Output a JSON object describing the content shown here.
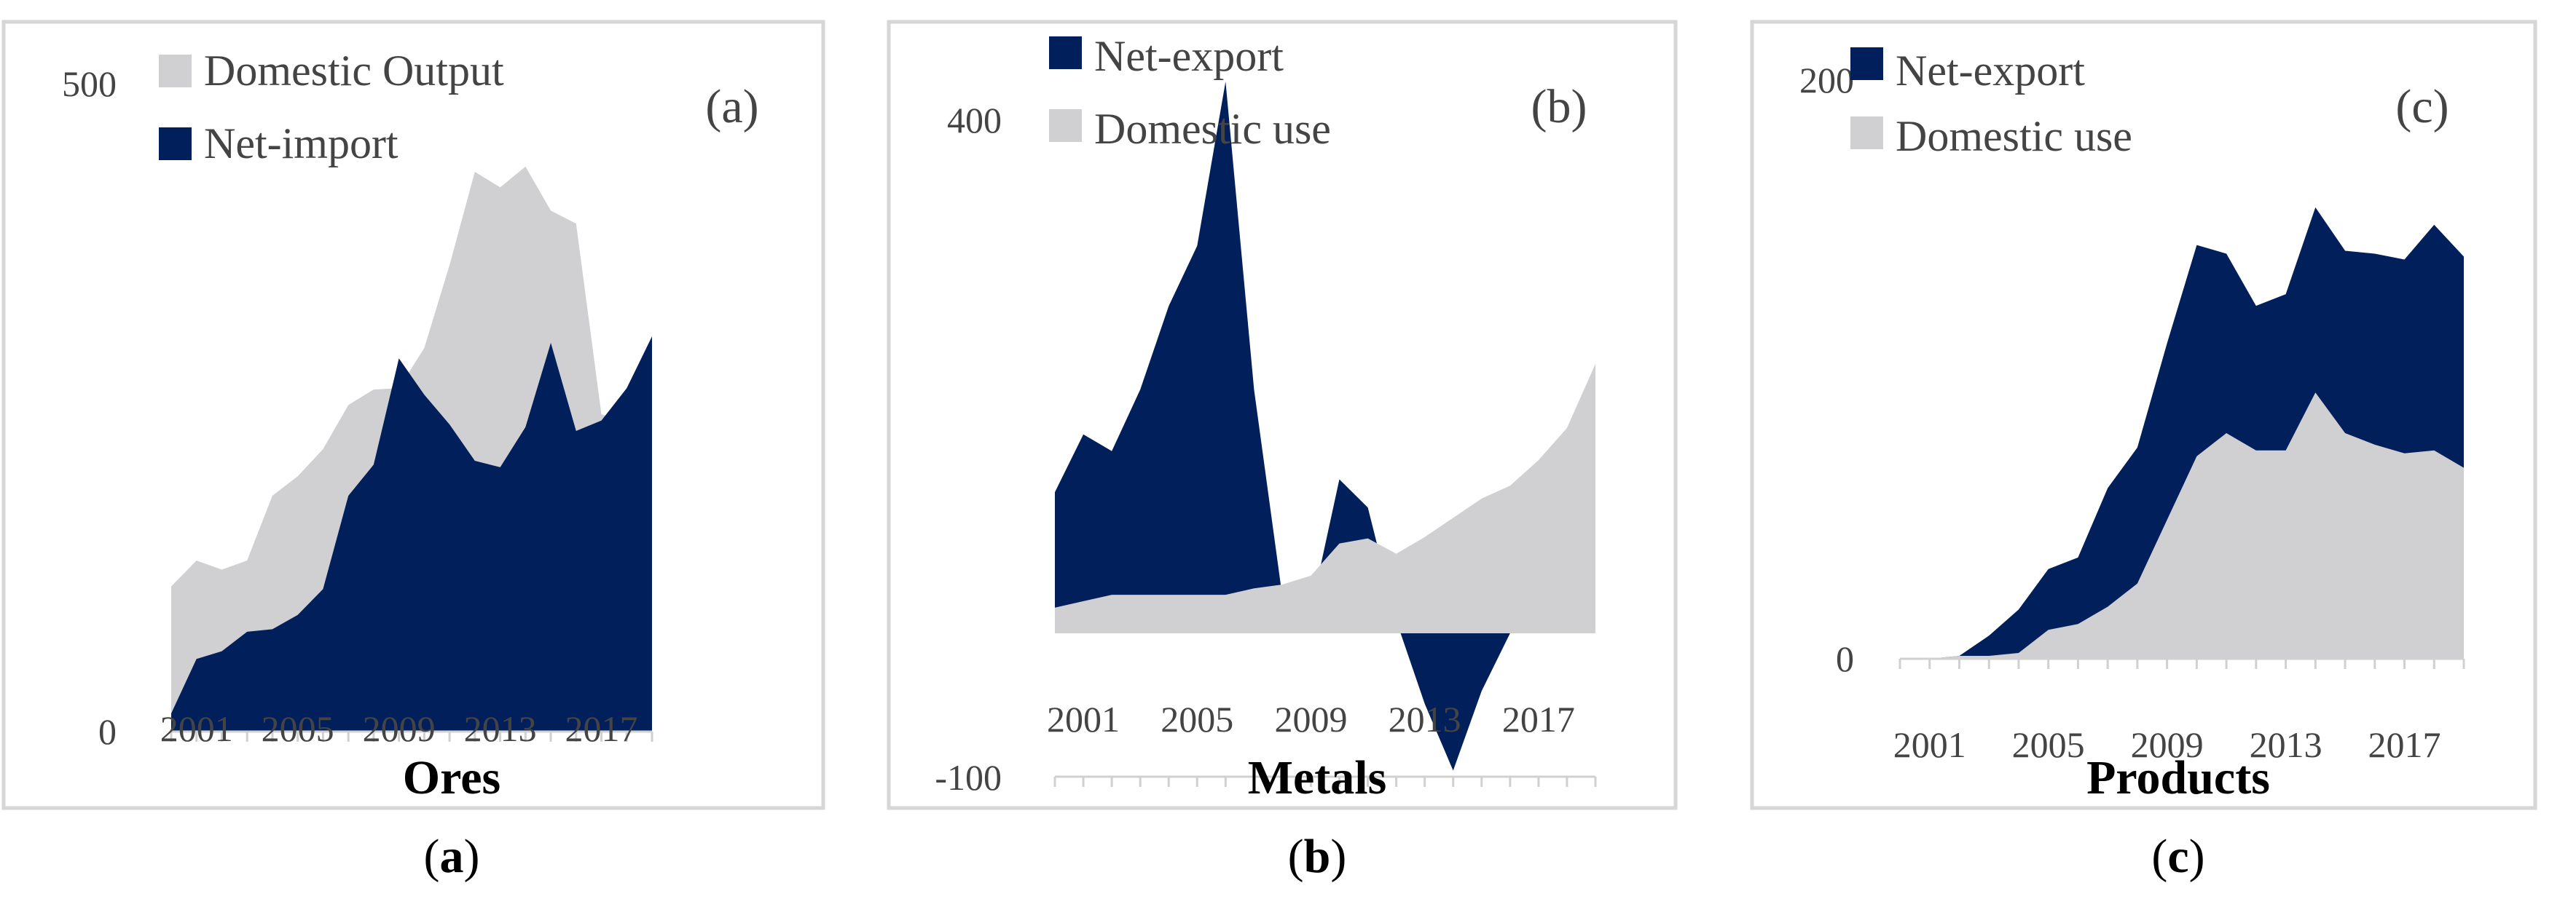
{
  "colors": {
    "navy": "#001f5b",
    "grey": "#d0cfd1"
  },
  "chart_data": [
    {
      "type": "area",
      "panel_tag": "(a)",
      "title": "Ores",
      "caption": {
        "open": "(",
        "letter": "a",
        "close": ")"
      },
      "x": [
        2000,
        2001,
        2002,
        2003,
        2004,
        2005,
        2006,
        2007,
        2008,
        2009,
        2010,
        2011,
        2012,
        2013,
        2014,
        2015,
        2016,
        2017,
        2018,
        2019
      ],
      "x_tick_labels": [
        {
          "value": 2001,
          "label": "2001"
        },
        {
          "value": 2005,
          "label": "2005"
        },
        {
          "value": 2009,
          "label": "2009"
        },
        {
          "value": 2013,
          "label": "2013"
        },
        {
          "value": 2017,
          "label": "2017"
        }
      ],
      "y_tick_labels": [
        {
          "value": 0,
          "label": "0"
        },
        {
          "value": 500,
          "label": "500"
        }
      ],
      "ylim": [
        0,
        500
      ],
      "legend": [
        {
          "name": "Domestic Output",
          "color": "#d0cfd1"
        },
        {
          "name": "Net-import",
          "color": "#001f5b"
        }
      ],
      "series": [
        {
          "name": "Domestic Output",
          "color": "#d0cfd1",
          "values": [
            112,
            132,
            125,
            132,
            182,
            197,
            218,
            252,
            264,
            265,
            296,
            360,
            432,
            420,
            436,
            402,
            392,
            245,
            237,
            305
          ]
        },
        {
          "name": "Net-import",
          "color": "#001f5b",
          "values": [
            14,
            56,
            62,
            77,
            79,
            90,
            110,
            182,
            206,
            288,
            260,
            237,
            209,
            204,
            235,
            300,
            232,
            240,
            265,
            305
          ]
        }
      ]
    },
    {
      "type": "area",
      "panel_tag": "(b)",
      "title": "Metals",
      "caption": {
        "open": "(",
        "letter": "b",
        "close": ")"
      },
      "x": [
        2000,
        2001,
        2002,
        2003,
        2004,
        2005,
        2006,
        2007,
        2008,
        2009,
        2010,
        2011,
        2012,
        2013,
        2014,
        2015,
        2016,
        2017,
        2018,
        2019
      ],
      "x_tick_labels": [
        {
          "value": 2001,
          "label": "2001"
        },
        {
          "value": 2005,
          "label": "2005"
        },
        {
          "value": 2009,
          "label": "2009"
        },
        {
          "value": 2013,
          "label": "2013"
        },
        {
          "value": 2017,
          "label": "2017"
        }
      ],
      "y_tick_labels": [
        {
          "value": 400,
          "label": "400"
        },
        {
          "value": -100,
          "label": "-100"
        }
      ],
      "ylim": [
        -100,
        400
      ],
      "legend": [
        {
          "name": "Net-export",
          "color": "#001f5b"
        },
        {
          "name": "Domestic use",
          "color": "#d0cfd1"
        }
      ],
      "series": [
        {
          "name": "Net-export",
          "color": "#001f5b",
          "values": [
            110,
            155,
            142,
            190,
            255,
            302,
            430,
            190,
            28,
            18,
            120,
            98,
            10,
            -55,
            -107,
            -45,
            0,
            0,
            0,
            0
          ]
        },
        {
          "name": "Domestic use",
          "color": "#d0cfd1",
          "values": [
            20,
            25,
            30,
            30,
            30,
            30,
            30,
            35,
            38,
            45,
            70,
            74,
            62,
            75,
            90,
            105,
            115,
            135,
            160,
            210
          ]
        }
      ]
    },
    {
      "type": "area",
      "panel_tag": "(c)",
      "title": "Products",
      "caption": {
        "open": "(",
        "letter": "c",
        "close": ")"
      },
      "x": [
        2000,
        2001,
        2002,
        2003,
        2004,
        2005,
        2006,
        2007,
        2008,
        2009,
        2010,
        2011,
        2012,
        2013,
        2014,
        2015,
        2016,
        2017,
        2018,
        2019
      ],
      "x_tick_labels": [
        {
          "value": 2001,
          "label": "2001"
        },
        {
          "value": 2005,
          "label": "2005"
        },
        {
          "value": 2009,
          "label": "2009"
        },
        {
          "value": 2013,
          "label": "2013"
        },
        {
          "value": 2017,
          "label": "2017"
        }
      ],
      "y_tick_labels": [
        {
          "value": 0,
          "label": "0"
        },
        {
          "value": 200,
          "label": "200"
        }
      ],
      "ylim": [
        0,
        200
      ],
      "legend": [
        {
          "name": "Net-export",
          "color": "#001f5b"
        },
        {
          "name": "Domestic use",
          "color": "#d0cfd1"
        }
      ],
      "series": [
        {
          "name": "Net-export",
          "color": "#001f5b",
          "values": [
            0,
            0,
            0,
            7,
            15,
            21,
            23,
            41,
            47,
            61,
            73,
            62,
            50,
            54,
            64,
            63,
            66,
            67,
            78,
            73
          ]
        },
        {
          "name": "Domestic use",
          "color": "#d0cfd1",
          "values": [
            0,
            0,
            1,
            1,
            2,
            10,
            12,
            18,
            26,
            48,
            70,
            78,
            72,
            72,
            92,
            78,
            74,
            71,
            72,
            66
          ]
        }
      ]
    }
  ]
}
